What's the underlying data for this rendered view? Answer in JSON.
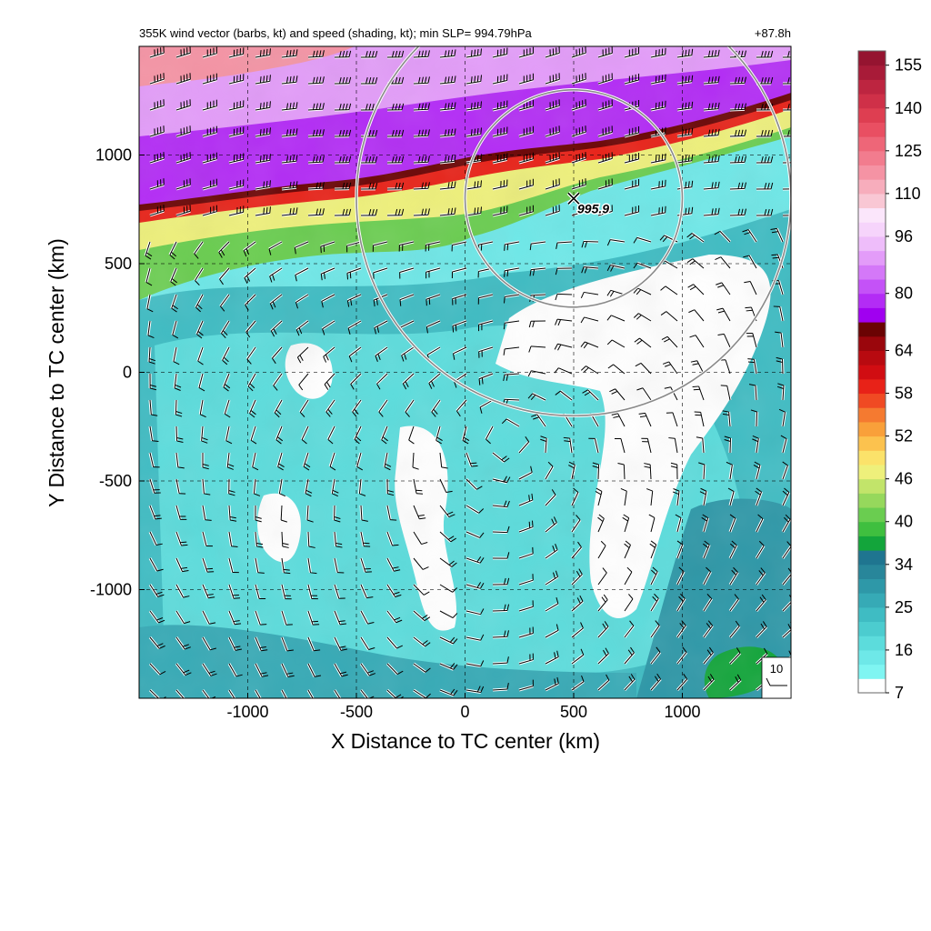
{
  "chart_data": {
    "type": "heatmap",
    "title": "355K wind vector (barbs, kt) and speed (shading, kt); min SLP= 994.79hPa",
    "time_label": "+87.8h",
    "xlabel": "X Distance to TC center (km)",
    "ylabel": "Y Distance to TC center (km)",
    "xlim": [
      -1500,
      1500
    ],
    "ylim": [
      -1500,
      1500
    ],
    "x_ticks": [
      -1000,
      -500,
      0,
      500,
      1000
    ],
    "y_ticks": [
      -1000,
      -500,
      0,
      500,
      1000
    ],
    "x_tick_labels": [
      "-1000",
      "-500",
      "0",
      "500",
      "1000"
    ],
    "y_tick_labels": [
      "-1000",
      "-500",
      "0",
      "500",
      "1000"
    ],
    "grid": "dashed",
    "colorbar": {
      "levels": [
        7,
        10,
        13,
        16,
        19,
        22,
        25,
        28,
        31,
        34,
        36,
        38,
        40,
        42,
        44,
        46,
        48,
        50,
        52,
        54,
        56,
        58,
        60,
        62,
        64,
        68,
        72,
        76,
        80,
        84,
        88,
        92,
        96,
        100,
        105,
        110,
        115,
        120,
        125,
        130,
        135,
        140,
        145,
        150,
        155,
        160
      ],
      "labels": [
        "7",
        "16",
        "25",
        "34",
        "40",
        "46",
        "52",
        "58",
        "64",
        "80",
        "96",
        "110",
        "125",
        "140",
        "155"
      ],
      "colors": [
        "#ffffff",
        "#7ff5f2",
        "#6ee8e8",
        "#5cdcdc",
        "#4ccccf",
        "#3fbcc3",
        "#36aab6",
        "#2e98a8",
        "#28869a",
        "#1f7590",
        "#13a53b",
        "#3fbf3f",
        "#6acd50",
        "#96d85c",
        "#c2e46a",
        "#eef07b",
        "#fbe26a",
        "#fcc24e",
        "#f9a03a",
        "#f57a30",
        "#f04a23",
        "#e82218",
        "#d10d12",
        "#b80a10",
        "#9a060c",
        "#6a0303",
        "#a000f0",
        "#b32cf5",
        "#c452f7",
        "#d478f8",
        "#e39cf9",
        "#eebdfa",
        "#f6d4fb",
        "#fbe6fb",
        "#f9c7d4",
        "#f7adbc",
        "#f593a4",
        "#f27c8e",
        "#ee6678",
        "#e94f62",
        "#de3e51",
        "#cf3048",
        "#bd2540",
        "#a81b38",
        "#951430"
      ],
      "extend_color": "#8e1430"
    },
    "wind_speed_regions": [
      {
        "region": "jet band north of y=700 km",
        "speed_kt": [
          64,
          110
        ]
      },
      {
        "region": "sharp gradient y=600-900 km",
        "speed_kt": [
          34,
          64
        ]
      },
      {
        "region": "tropical interior",
        "speed_kt": [
          7,
          30
        ]
      },
      {
        "region": "upper-left corner",
        "speed_kt": [
          110,
          140
        ]
      }
    ],
    "tc_marker": {
      "x_km": 500,
      "y_km": 800,
      "label": "995.9"
    },
    "range_rings": [
      {
        "center_km": [
          500,
          800
        ],
        "radius_km": 500
      },
      {
        "center_km": [
          500,
          800
        ],
        "radius_km": 1000
      }
    ],
    "reference_vector": {
      "label": "10"
    }
  }
}
